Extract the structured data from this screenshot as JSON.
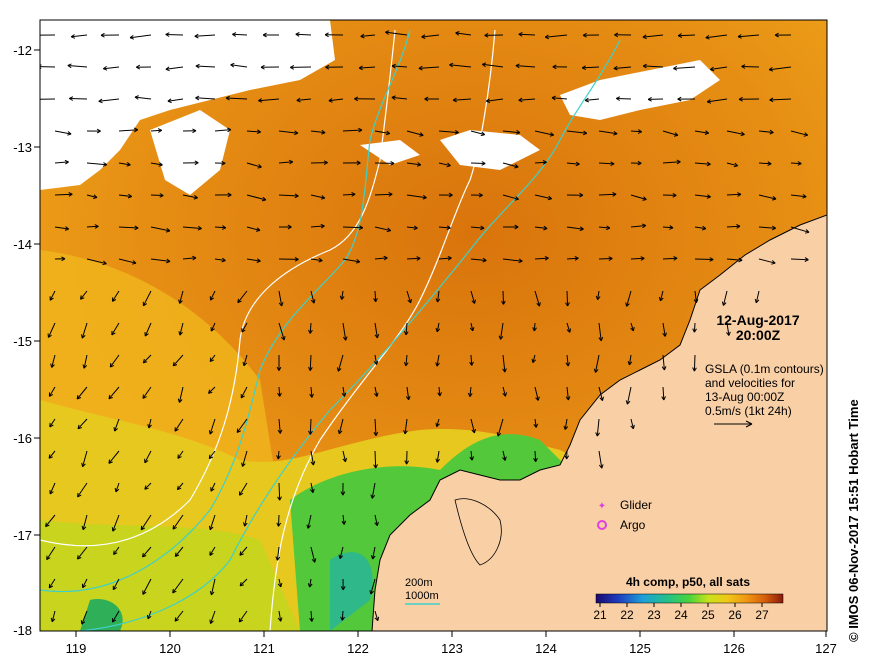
{
  "map": {
    "x_ticks": [
      "119",
      "120",
      "121",
      "122",
      "123",
      "124",
      "125",
      "126",
      "127"
    ],
    "y_ticks": [
      "-12",
      "-13",
      "-14",
      "-15",
      "-16",
      "-17",
      "-18"
    ],
    "date": "12-Aug-2017",
    "time": "20:00Z",
    "gsla_lines": [
      "GSLA (0.1m contours)",
      "and velocities for",
      "13-Aug 00:00Z",
      "0.5m/s (1kt 24h)"
    ],
    "legend_glider": "Glider",
    "legend_argo": "Argo",
    "depth_200": "200m",
    "depth_1000": "1000m",
    "colorbar_title": "4h comp, p50, all sats",
    "colorbar_ticks": [
      "21",
      "22",
      "23",
      "24",
      "25",
      "26",
      "27"
    ],
    "side_text": "© IMOS 06-Nov-2017 15:51 Hobart Time",
    "colors": {
      "land": "#f9cfa6",
      "contour_200": "#ffffff",
      "contour_1000": "#3fd0c8",
      "glider": "#e040e0",
      "argo": "#e040e0"
    }
  }
}
